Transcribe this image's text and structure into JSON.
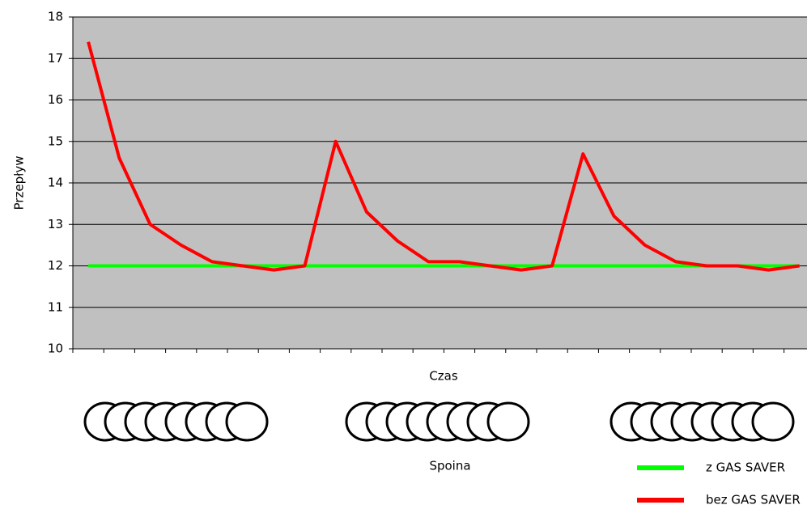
{
  "chart_data": {
    "type": "line",
    "y_label": "Przepływ",
    "x_label": "Czas",
    "annotation": "Spoina",
    "categories": [
      null,
      null,
      null,
      null,
      null,
      null,
      null,
      null,
      null,
      null,
      null,
      null,
      null,
      null,
      null,
      null,
      null,
      null,
      null,
      null,
      null,
      null,
      null,
      null
    ],
    "series": [
      {
        "name": "z GAS SAVER",
        "color": "#00ff00",
        "values": [
          12,
          12,
          12,
          12,
          12,
          12,
          12,
          12,
          12,
          12,
          12,
          12,
          12,
          12,
          12,
          12,
          12,
          12,
          12,
          12,
          12,
          12,
          12,
          12
        ]
      },
      {
        "name": "bez GAS SAVER",
        "color": "#ff0000",
        "values": [
          17.4,
          14.6,
          13.0,
          12.5,
          12.1,
          12.0,
          11.9,
          12.0,
          15.0,
          13.3,
          12.6,
          12.1,
          12.1,
          12.0,
          11.9,
          12.0,
          14.7,
          13.2,
          12.5,
          12.1,
          12.0,
          12.0,
          11.9,
          12.0
        ]
      }
    ],
    "ylim": [
      10,
      18
    ],
    "yticks": [
      10,
      11,
      12,
      13,
      14,
      15,
      16,
      17,
      18
    ],
    "grid": true,
    "legend": "bottom-right"
  }
}
